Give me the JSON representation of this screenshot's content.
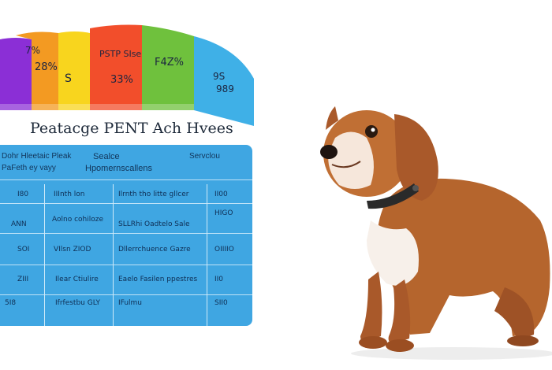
{
  "chart": {
    "bands": [
      {
        "label": "7%",
        "color": "#8b2fd6"
      },
      {
        "label": "28%",
        "color": "#f29420"
      },
      {
        "label": "S",
        "color": "#f7d21c"
      },
      {
        "label": "33%",
        "color": "#f24d2a"
      },
      {
        "label": "PSTP SIse",
        "color": "#f24d2a"
      },
      {
        "label": "F4Z%",
        "color": "#6cc03c"
      },
      {
        "label": "9S",
        "color": "#3fb0e6"
      },
      {
        "label": "989",
        "color": "#3fb0e6"
      }
    ]
  },
  "title": "Peatacge PENT Ach Hvees",
  "table": {
    "header": {
      "left_top": "Dohr Hleetaic Pleak",
      "left_bottom": "PaFeth ey vayy",
      "mid_top": "Sealce",
      "mid_bottom": "Hpomernscallens",
      "right_top": "Servclou"
    },
    "rows": [
      [
        "I80",
        "IIInth lon",
        "Ilrnth tho litte gllcer",
        "II00"
      ],
      [
        "ANN",
        "Aolno cohiloze",
        "SLLRhi Oadtelo Sale",
        "HIGO"
      ],
      [
        "SOI",
        "VIlsn ZIOD",
        "Dllerrchuence Gazre",
        "OIIIIO"
      ],
      [
        "ZIII",
        "Ilear Ctiulire",
        "Eaelo Fasilen ppestres",
        "II0"
      ],
      [
        "5I8",
        "Ifrfestbu GLY",
        "IFulmu",
        "SII0"
      ]
    ]
  }
}
